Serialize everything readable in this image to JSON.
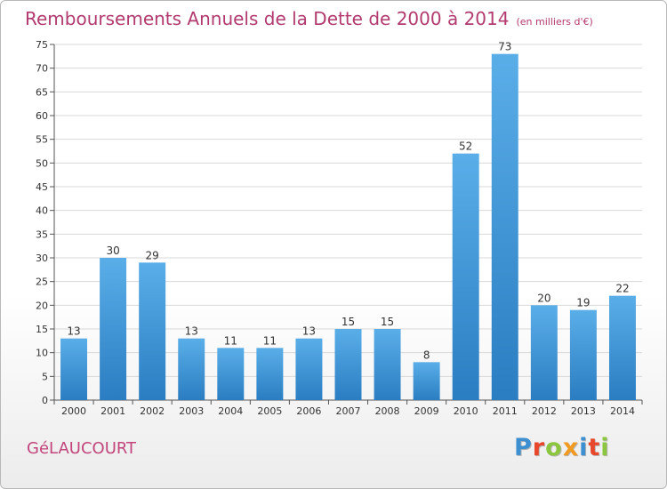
{
  "title": "Remboursements Annuels de la Dette de 2000 à 2014",
  "subtitle": "(en milliers d'€)",
  "commune": "GéLAUCOURT",
  "logo": {
    "text": "Proxiti",
    "letters": [
      {
        "char": "P",
        "color": "#3c8fd0"
      },
      {
        "char": "r",
        "color": "#e8472c"
      },
      {
        "char": "o",
        "color": "#8cc63f"
      },
      {
        "char": "x",
        "color": "#f29a1f"
      },
      {
        "char": "i",
        "color": "#3c8fd0"
      },
      {
        "char": "t",
        "color": "#e8472c"
      },
      {
        "char": "i",
        "color": "#8cc63f"
      }
    ]
  },
  "colors": {
    "title": "#b23a6f",
    "bar_top": "#5aaee8",
    "bar_bottom": "#2a7dc1",
    "grid": "#d8d8d8",
    "axis": "#555555"
  },
  "chart_data": {
    "type": "bar",
    "categories": [
      "2000",
      "2001",
      "2002",
      "2003",
      "2004",
      "2005",
      "2006",
      "2007",
      "2008",
      "2009",
      "2010",
      "2011",
      "2012",
      "2013",
      "2014"
    ],
    "values": [
      13,
      30,
      29,
      13,
      11,
      11,
      13,
      15,
      15,
      8,
      52,
      73,
      20,
      19,
      22
    ],
    "ylim": [
      0,
      75
    ],
    "yticks": [
      0,
      5,
      10,
      15,
      20,
      25,
      30,
      35,
      40,
      45,
      50,
      55,
      60,
      65,
      70,
      75
    ],
    "grid": true,
    "data_labels": true
  }
}
